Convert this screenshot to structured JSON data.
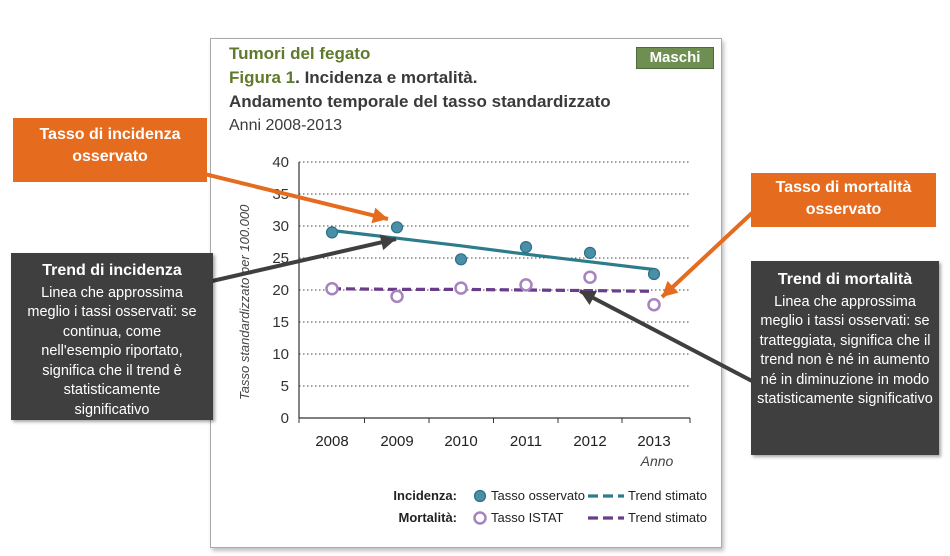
{
  "header": {
    "topic": "Tumori del fegato",
    "figure_label": "Figura 1",
    "figure_title": ". Incidenza e mortalità.",
    "subtitle": "Andamento temporale del tasso standardizzato",
    "period": "Anni 2008-2013",
    "badge": "Maschi"
  },
  "chart_data": {
    "type": "line",
    "x": [
      2008,
      2009,
      2010,
      2011,
      2012,
      2013
    ],
    "xlabel": "Anno",
    "ylabel": "Tasso standardizzato per 100.000",
    "ylim": [
      0,
      40
    ],
    "yticks": [
      0,
      5,
      10,
      15,
      20,
      25,
      30,
      35,
      40
    ],
    "grid": "horizontal dotted",
    "series": [
      {
        "name": "Incidenza - Tasso osservato",
        "kind": "points",
        "values": [
          29.0,
          29.8,
          24.8,
          26.7,
          25.8,
          22.5
        ],
        "color": "#4a8fa8"
      },
      {
        "name": "Incidenza - Trend stimato",
        "kind": "line",
        "style": "solid",
        "values": [
          29.3,
          28.1,
          26.9,
          25.6,
          24.4,
          23.2
        ],
        "color": "#2d7c8c"
      },
      {
        "name": "Mortalità - Tasso ISTAT",
        "kind": "points",
        "values": [
          20.2,
          19.0,
          20.3,
          20.8,
          22.0,
          17.7
        ],
        "color": "#a783c0"
      },
      {
        "name": "Mortalità - Trend stimato",
        "kind": "line",
        "style": "dashed",
        "values": [
          20.2,
          20.1,
          20.1,
          20.0,
          19.9,
          19.8
        ],
        "color": "#6a3d8a"
      }
    ],
    "legend": {
      "incidenza_label": "Incidenza:",
      "mortalita_label": "Mortalità:",
      "observed": "Tasso osservato",
      "istat": "Tasso ISTAT",
      "trend": "Trend stimato"
    }
  },
  "callouts": {
    "incidence_observed": "Tasso di incidenza osservato",
    "mortality_observed": "Tasso di mortalità osservato",
    "incidence_trend_title": "Trend di incidenza",
    "incidence_trend_text": "Linea che approssima meglio i tassi osservati: se continua, come nell'esempio riportato, significa che il trend è statisticamente significativo",
    "mortality_trend_title": "Trend di mortalità",
    "mortality_trend_text": "Linea che approssima meglio i tassi osservati: se tratteggiata, significa che il trend non è né in aumento né in diminuzione in modo statisticamente significativo"
  },
  "colors": {
    "orange": "#e56b1f",
    "dark": "#3f3f3f",
    "incidence": "#2d7c8c",
    "mortality": "#6a3d8a",
    "title_green": "#5e7a2a"
  }
}
